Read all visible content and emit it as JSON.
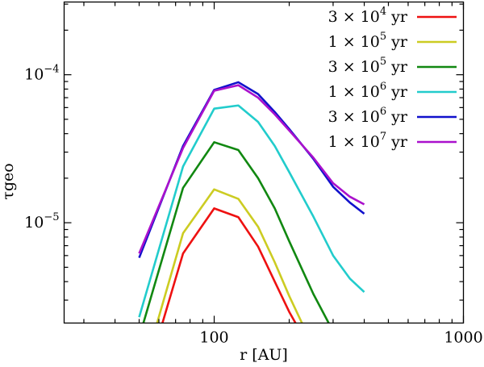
{
  "chart_data": {
    "type": "line",
    "xlabel": "r [AU]",
    "ylabel": "τgeo",
    "x_scale": "log",
    "y_scale": "log",
    "xlim": [
      25,
      1000
    ],
    "ylim": [
      2.1e-06,
      0.00031
    ],
    "x_ticks": [
      {
        "value": 100,
        "label": "100"
      },
      {
        "value": 1000,
        "label": "1000"
      }
    ],
    "y_ticks": [
      {
        "value": 1e-05,
        "label": "10",
        "exp": "−5"
      },
      {
        "value": 0.0001,
        "label": "10",
        "exp": "−4"
      }
    ],
    "grid": false,
    "legend_position": "top-right",
    "x": [
      50,
      75,
      100,
      125,
      150,
      175,
      200,
      250,
      300,
      350,
      400
    ],
    "series": [
      {
        "name": "3 × 10⁴ yr",
        "legend": {
          "mantissa": "3",
          "exp": "4",
          "unit": "yr"
        },
        "color": "#ee1111",
        "points": [
          [
            62,
            2.1e-06
          ],
          [
            75,
            6.2e-06
          ],
          [
            100,
            1.25e-05
          ],
          [
            125,
            1.09e-05
          ],
          [
            150,
            6.9e-06
          ],
          [
            175,
            4e-06
          ],
          [
            200,
            2.5e-06
          ],
          [
            212,
            2.1e-06
          ]
        ]
      },
      {
        "name": "1 × 10⁵ yr",
        "legend": {
          "mantissa": "1",
          "exp": "5",
          "unit": "yr"
        },
        "color": "#cccc22",
        "points": [
          [
            59,
            2.1e-06
          ],
          [
            75,
            8.5e-06
          ],
          [
            100,
            1.68e-05
          ],
          [
            125,
            1.45e-05
          ],
          [
            150,
            9.4e-06
          ],
          [
            175,
            5.4e-06
          ],
          [
            200,
            3.2e-06
          ],
          [
            225,
            2.1e-06
          ]
        ]
      },
      {
        "name": "3 × 10⁵ yr",
        "legend": {
          "mantissa": "3",
          "exp": "5",
          "unit": "yr"
        },
        "color": "#118811",
        "points": [
          [
            52,
            2.1e-06
          ],
          [
            75,
            1.72e-05
          ],
          [
            100,
            3.5e-05
          ],
          [
            125,
            3.1e-05
          ],
          [
            150,
            2e-05
          ],
          [
            175,
            1.25e-05
          ],
          [
            200,
            7.5e-06
          ],
          [
            250,
            3.3e-06
          ],
          [
            288,
            2.1e-06
          ]
        ]
      },
      {
        "name": "1 × 10⁶ yr",
        "legend": {
          "mantissa": "1",
          "exp": "6",
          "unit": "yr"
        },
        "color": "#22cccc",
        "points": [
          [
            50,
            2.3e-06
          ],
          [
            75,
            2.4e-05
          ],
          [
            100,
            5.9e-05
          ],
          [
            125,
            6.2e-05
          ],
          [
            150,
            4.8e-05
          ],
          [
            175,
            3.3e-05
          ],
          [
            200,
            2.2e-05
          ],
          [
            250,
            1.1e-05
          ],
          [
            300,
            6e-06
          ],
          [
            350,
            4.2e-06
          ],
          [
            400,
            3.4e-06
          ]
        ]
      },
      {
        "name": "3 × 10⁶ yr",
        "legend": {
          "mantissa": "3",
          "exp": "6",
          "unit": "yr"
        },
        "color": "#1111cc",
        "points": [
          [
            50,
            5.8e-06
          ],
          [
            75,
            3.3e-05
          ],
          [
            100,
            7.9e-05
          ],
          [
            125,
            8.9e-05
          ],
          [
            150,
            7.4e-05
          ],
          [
            175,
            5.6e-05
          ],
          [
            200,
            4.3e-05
          ],
          [
            250,
            2.7e-05
          ],
          [
            300,
            1.75e-05
          ],
          [
            350,
            1.37e-05
          ],
          [
            400,
            1.15e-05
          ]
        ]
      },
      {
        "name": "1 × 10⁷ yr",
        "legend": {
          "mantissa": "1",
          "exp": "7",
          "unit": "yr"
        },
        "color": "#aa11cc",
        "points": [
          [
            50,
            6.2e-06
          ],
          [
            75,
            3.2e-05
          ],
          [
            100,
            7.8e-05
          ],
          [
            125,
            8.5e-05
          ],
          [
            150,
            7e-05
          ],
          [
            175,
            5.4e-05
          ],
          [
            200,
            4.2e-05
          ],
          [
            250,
            2.75e-05
          ],
          [
            300,
            1.85e-05
          ],
          [
            350,
            1.5e-05
          ],
          [
            400,
            1.33e-05
          ]
        ]
      }
    ]
  }
}
